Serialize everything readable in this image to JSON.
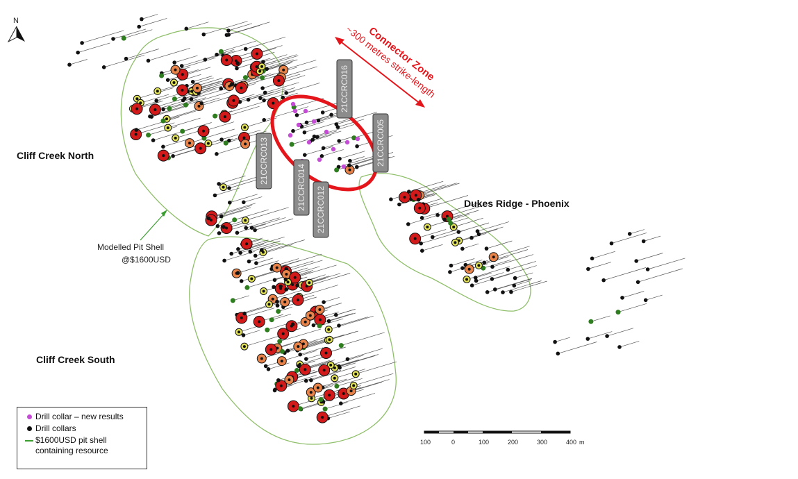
{
  "north": {
    "letter": "N",
    "icon": "north-arrow-icon"
  },
  "area_labels": {
    "cliff_creek_north": "Cliff Creek North",
    "cliff_creek_south": "Cliff Creek South",
    "dukes_ridge": "Dukes Ridge - Phoenix"
  },
  "pit_shell_note": {
    "line1": "Modelled Pit Shell",
    "line2": "@$1600USD"
  },
  "connector_zone": {
    "title": "Connector Zone",
    "subtitle": "~300 metres strike-length"
  },
  "drill_holes": [
    "21CCRC016",
    "21CCRC005",
    "21CCRC013",
    "21CCRC014",
    "21CCRC012"
  ],
  "legend": {
    "items": [
      {
        "label": "Drill collar – new results",
        "color": "#c64bd6",
        "symbol": "dot"
      },
      {
        "label": "Drill collars",
        "color": "#111111",
        "symbol": "dot"
      },
      {
        "label": "$1600USD pit shell containing resource",
        "color": "#3a9d2f",
        "symbol": "line"
      }
    ]
  },
  "scale_bar": {
    "ticks": [
      "100",
      "0",
      "100",
      "200",
      "300",
      "400"
    ],
    "unit": "m"
  },
  "colors": {
    "collar": "#111111",
    "new_result": "#c64bd6",
    "pit_shell": "#8fbf6a",
    "connector": "#e4161c",
    "high_grade": "#d21a1a",
    "medium_grade": "#e8834a",
    "low_grade": "#e3e35a",
    "green_marker": "#2e7d1f"
  }
}
